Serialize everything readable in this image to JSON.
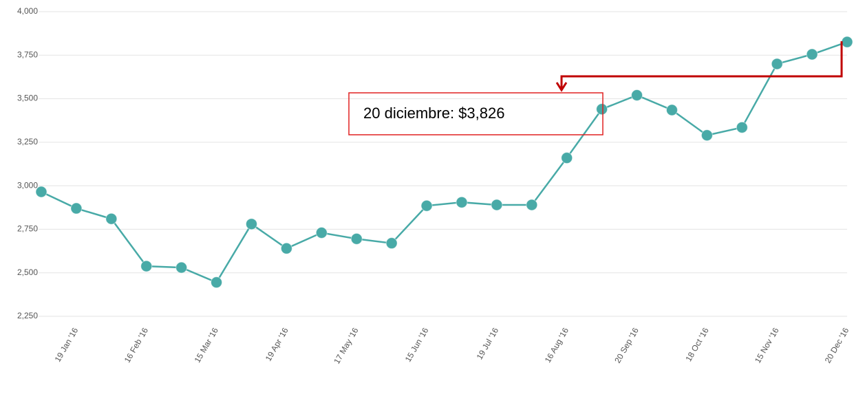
{
  "chart_data": {
    "type": "line",
    "categories": [
      null,
      "19 Jan '16",
      null,
      "16 Feb '16",
      null,
      "15 Mar '16",
      null,
      "19 Apr '16",
      null,
      "17 May '16",
      null,
      "15 Jun '16",
      null,
      "19 Jul '16",
      null,
      "16 Aug '16",
      null,
      "20 Sep '16",
      null,
      "18 Oct '16",
      null,
      "15 Nov '16",
      null,
      "20 Dec '16"
    ],
    "series": [
      {
        "color": "#48aaa7",
        "values": [
          2965,
          2870,
          2810,
          2538,
          2530,
          2445,
          2780,
          2640,
          2730,
          2695,
          2670,
          2885,
          2905,
          2890,
          2890,
          3160,
          3440,
          3520,
          3435,
          3290,
          3335,
          3700,
          3755,
          3826
        ]
      }
    ],
    "ylim": [
      2250,
      4000
    ],
    "yticks": [
      {
        "value": 2250,
        "label": "2,250"
      },
      {
        "value": 2500,
        "label": "2,500"
      },
      {
        "value": 2750,
        "label": "2,750"
      },
      {
        "value": 3000,
        "label": "3,000"
      },
      {
        "value": 3250,
        "label": "3,250"
      },
      {
        "value": 3500,
        "label": "3,500"
      },
      {
        "value": 3750,
        "label": "3,750"
      },
      {
        "value": 4000,
        "label": "4,000"
      }
    ],
    "grid": true,
    "annotation": "20 diciembre: $3,826",
    "annotation_color": "#c00000"
  }
}
